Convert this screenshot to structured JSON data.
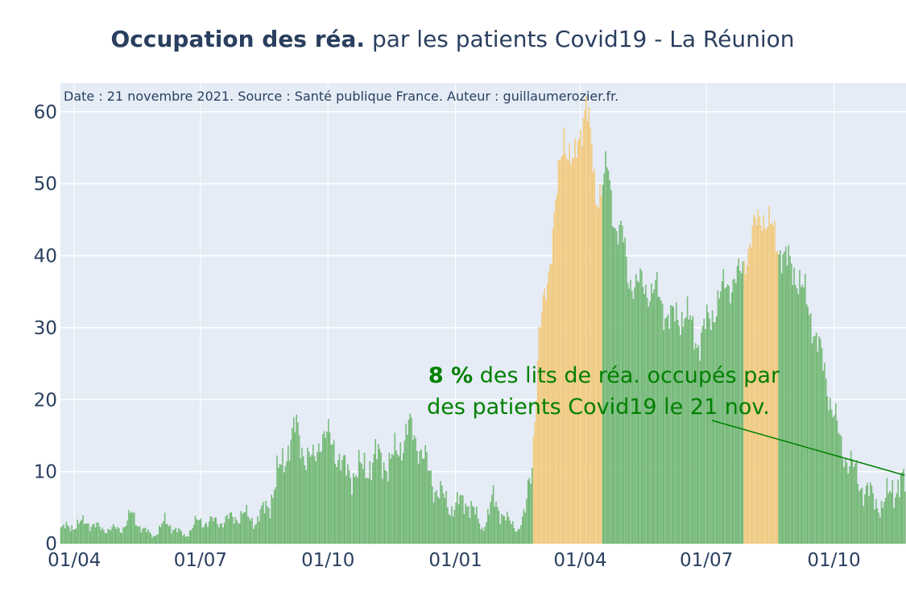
{
  "chart_data": {
    "type": "bar",
    "title_bold": "Occupation des réa.",
    "title_rest": " par les patients Covid19 - La Réunion",
    "source_note": "Date : 21 novembre 2021. Source : Santé publique France. Auteur : guillaumerozier.fr.",
    "xlabel": "",
    "ylabel": "",
    "ylim": [
      0,
      64
    ],
    "x_range": [
      "2020-03-22",
      "2021-11-21"
    ],
    "y_ticks": [
      0,
      10,
      20,
      30,
      40,
      50,
      60
    ],
    "x_ticks": [
      {
        "date": "2020-04-01",
        "label": "01/04"
      },
      {
        "date": "2020-07-01",
        "label": "01/07"
      },
      {
        "date": "2020-10-01",
        "label": "01/10"
      },
      {
        "date": "2021-01-01",
        "label": "01/01"
      },
      {
        "date": "2021-04-01",
        "label": "01/04"
      },
      {
        "date": "2021-07-01",
        "label": "01/07"
      },
      {
        "date": "2021-10-01",
        "label": "01/10"
      }
    ],
    "grid": true,
    "colors": {
      "plot_bg": "#e5ecf6",
      "green_bar": "#91c890",
      "green_edge": "#4fa652",
      "orange_bar": "#f7dca7",
      "orange_edge": "#f0b850",
      "annotation": "#008000",
      "text": "#2a3f5f"
    },
    "series": [
      {
        "start_date": "2020-03-22",
        "end_date": "2021-11-21",
        "points": [
          [
            "2020-03-22",
            2
          ],
          [
            "2020-04-10",
            3
          ],
          [
            "2020-04-20",
            2
          ],
          [
            "2020-05-05",
            2
          ],
          [
            "2020-05-12",
            4
          ],
          [
            "2020-05-20",
            2
          ],
          [
            "2020-05-28",
            1
          ],
          [
            "2020-06-05",
            3
          ],
          [
            "2020-06-20",
            1
          ],
          [
            "2020-06-28",
            3
          ],
          [
            "2020-07-15",
            3
          ],
          [
            "2020-08-01",
            4
          ],
          [
            "2020-08-10",
            3
          ],
          [
            "2020-08-20",
            6
          ],
          [
            "2020-09-01",
            13
          ],
          [
            "2020-09-08",
            16
          ],
          [
            "2020-09-15",
            12
          ],
          [
            "2020-09-20",
            11
          ],
          [
            "2020-09-25",
            15
          ],
          [
            "2020-10-05",
            14
          ],
          [
            "2020-10-12",
            10
          ],
          [
            "2020-10-25",
            10
          ],
          [
            "2020-11-05",
            12
          ],
          [
            "2020-11-15",
            11
          ],
          [
            "2020-11-28",
            16
          ],
          [
            "2020-12-05",
            14
          ],
          [
            "2020-12-12",
            10
          ],
          [
            "2020-12-20",
            7
          ],
          [
            "2020-12-28",
            5
          ],
          [
            "2021-01-10",
            6
          ],
          [
            "2021-01-20",
            2
          ],
          [
            "2021-01-28",
            6
          ],
          [
            "2021-02-08",
            3
          ],
          [
            "2021-02-15",
            2
          ],
          [
            "2021-02-20",
            4
          ],
          [
            "2021-02-25",
            12
          ],
          [
            "2021-03-02",
            28
          ],
          [
            "2021-03-10",
            40
          ],
          [
            "2021-03-20",
            57
          ],
          [
            "2021-03-27",
            52
          ],
          [
            "2021-04-05",
            62
          ],
          [
            "2021-04-12",
            48
          ],
          [
            "2021-04-20",
            52
          ],
          [
            "2021-04-25",
            45
          ],
          [
            "2021-05-01",
            43
          ],
          [
            "2021-05-05",
            37
          ],
          [
            "2021-05-12",
            36
          ],
          [
            "2021-05-25",
            35
          ],
          [
            "2021-06-05",
            31
          ],
          [
            "2021-06-15",
            32
          ],
          [
            "2021-06-25",
            28
          ],
          [
            "2021-07-05",
            32
          ],
          [
            "2021-07-15",
            36
          ],
          [
            "2021-07-25",
            37
          ],
          [
            "2021-08-01",
            42
          ],
          [
            "2021-08-10",
            46
          ],
          [
            "2021-08-18",
            43
          ],
          [
            "2021-08-28",
            39
          ],
          [
            "2021-09-05",
            37
          ],
          [
            "2021-09-15",
            31
          ],
          [
            "2021-09-25",
            23
          ],
          [
            "2021-10-05",
            14
          ],
          [
            "2021-10-15",
            10
          ],
          [
            "2021-10-25",
            7
          ],
          [
            "2021-11-05",
            5
          ],
          [
            "2021-11-12",
            8
          ],
          [
            "2021-11-21",
            8
          ]
        ],
        "highlighted_periods": [
          [
            "2021-02-26",
            "2021-04-16"
          ],
          [
            "2021-07-28",
            "2021-08-21"
          ]
        ]
      }
    ],
    "annotation": {
      "bold_part": "8  %",
      "line1_rest": " des lits de réa. occupés par",
      "line2": "des patients Covid19 le 21 nov.",
      "arrow_target_date": "2021-11-21",
      "arrow_target_value": 9.5
    }
  }
}
